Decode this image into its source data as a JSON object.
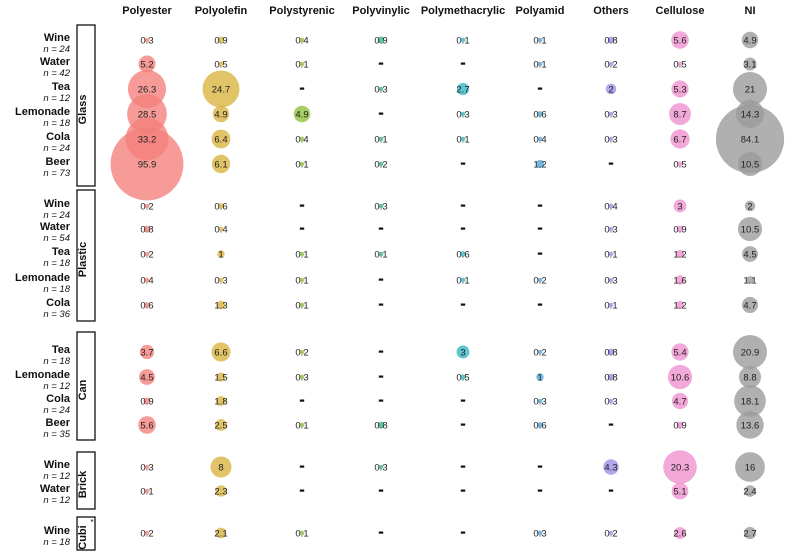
{
  "chart_data": {
    "type": "bubble-matrix",
    "columns": [
      "Polyester",
      "Polyolefin",
      "Polystyrenic",
      "Polyvinylic",
      "Polymethacrylic",
      "Polyamid",
      "Others",
      "Cellulose",
      "NI"
    ],
    "column_colors": [
      "#f47f7a",
      "#d9b23e",
      "#8fbf3a",
      "#34b58a",
      "#32b6c4",
      "#4ea5d8",
      "#9a8ee8",
      "#ef8fd0",
      "#9a9a9a"
    ],
    "groups": [
      {
        "label": "Glass",
        "rows": [
          {
            "drink": "Wine",
            "n": "n = 24",
            "values": [
              "0.3",
              "0.9",
              "0.4",
              "0.9",
              "0.1",
              "0.1",
              "0.8",
              "5.6",
              "4.9"
            ]
          },
          {
            "drink": "Water",
            "n": "n = 42",
            "values": [
              "5.2",
              "0.5",
              "0.1",
              "–",
              "–",
              "0.1",
              "0.2",
              "0.5",
              "3.1"
            ]
          },
          {
            "drink": "Tea",
            "n": "n = 12",
            "values": [
              "26.3",
              "24.7",
              "–",
              "0.3",
              "2.7",
              "–",
              "2",
              "5.3",
              "21"
            ]
          },
          {
            "drink": "Lemonade",
            "n": "n = 18",
            "values": [
              "28.5",
              "4.9",
              "4.9",
              "–",
              "0.3",
              "0.6",
              "0.3",
              "8.7",
              "14.3"
            ]
          },
          {
            "drink": "Cola",
            "n": "n = 24",
            "values": [
              "33.2",
              "6.4",
              "0.4",
              "0.1",
              "0.1",
              "0.4",
              "0.3",
              "6.7",
              "84.1"
            ]
          },
          {
            "drink": "Beer",
            "n": "n = 73",
            "values": [
              "95.9",
              "6.1",
              "0.1",
              "0.2",
              "–",
              "1.2",
              "–",
              "0.5",
              "10.5"
            ]
          }
        ]
      },
      {
        "label": "Plastic",
        "rows": [
          {
            "drink": "Wine",
            "n": "n = 24",
            "values": [
              "0.2",
              "0.6",
              "–",
              "0.3",
              "–",
              "–",
              "0.4",
              "3",
              "2"
            ]
          },
          {
            "drink": "Water",
            "n": "n = 54",
            "values": [
              "0.8",
              "0.4",
              "–",
              "–",
              "–",
              "–",
              "0.3",
              "0.9",
              "10.5"
            ]
          },
          {
            "drink": "Tea",
            "n": "n = 18",
            "values": [
              "0.2",
              "1",
              "0.1",
              "0.1",
              "0.6",
              "–",
              "0.1",
              "1.2",
              "4.5"
            ]
          },
          {
            "drink": "Lemonade",
            "n": "n = 18",
            "values": [
              "0.4",
              "0.3",
              "0.1",
              "–",
              "0.1",
              "0.2",
              "0.3",
              "1.6",
              "1.1"
            ]
          },
          {
            "drink": "Cola",
            "n": "n = 36",
            "values": [
              "0.6",
              "1.3",
              "0.1",
              "–",
              "–",
              "–",
              "0.1",
              "1.2",
              "4.7"
            ]
          }
        ]
      },
      {
        "label": "Can",
        "rows": [
          {
            "drink": "Tea",
            "n": "n = 18",
            "values": [
              "3.7",
              "6.6",
              "0.2",
              "–",
              "3",
              "0.2",
              "0.8",
              "5.4",
              "20.9"
            ]
          },
          {
            "drink": "Lemonade",
            "n": "n = 12",
            "values": [
              "4.5",
              "1.5",
              "0.3",
              "–",
              "0.5",
              "1",
              "0.8",
              "10.6",
              "8.8"
            ]
          },
          {
            "drink": "Cola",
            "n": "n = 24",
            "values": [
              "0.9",
              "1.8",
              "–",
              "–",
              "–",
              "0.3",
              "0.3",
              "4.7",
              "18.1"
            ]
          },
          {
            "drink": "Beer",
            "n": "n = 35",
            "values": [
              "5.6",
              "2.5",
              "0.1",
              "0.8",
              "–",
              "0.6",
              "–",
              "0.9",
              "13.6"
            ]
          }
        ]
      },
      {
        "label": "Brick",
        "rows": [
          {
            "drink": "Wine",
            "n": "n = 12",
            "values": [
              "0.3",
              "8",
              "–",
              "0.3",
              "–",
              "–",
              "4.3",
              "20.3",
              "16"
            ]
          },
          {
            "drink": "Water",
            "n": "n = 12",
            "values": [
              "0.1",
              "2.3",
              "–",
              "–",
              "–",
              "–",
              "–",
              "5.1",
              "2.4"
            ]
          }
        ]
      },
      {
        "label": "Cubi",
        "label_mark": "*",
        "rows": [
          {
            "drink": "Wine",
            "n": "n = 18",
            "values": [
              "0.2",
              "2.1",
              "0.1",
              "–",
              "–",
              "0.3",
              "0.2",
              "2.6",
              "2.7"
            ]
          }
        ]
      }
    ],
    "encoding": "bubble area proportional to value",
    "legend": "none",
    "grid": false
  }
}
